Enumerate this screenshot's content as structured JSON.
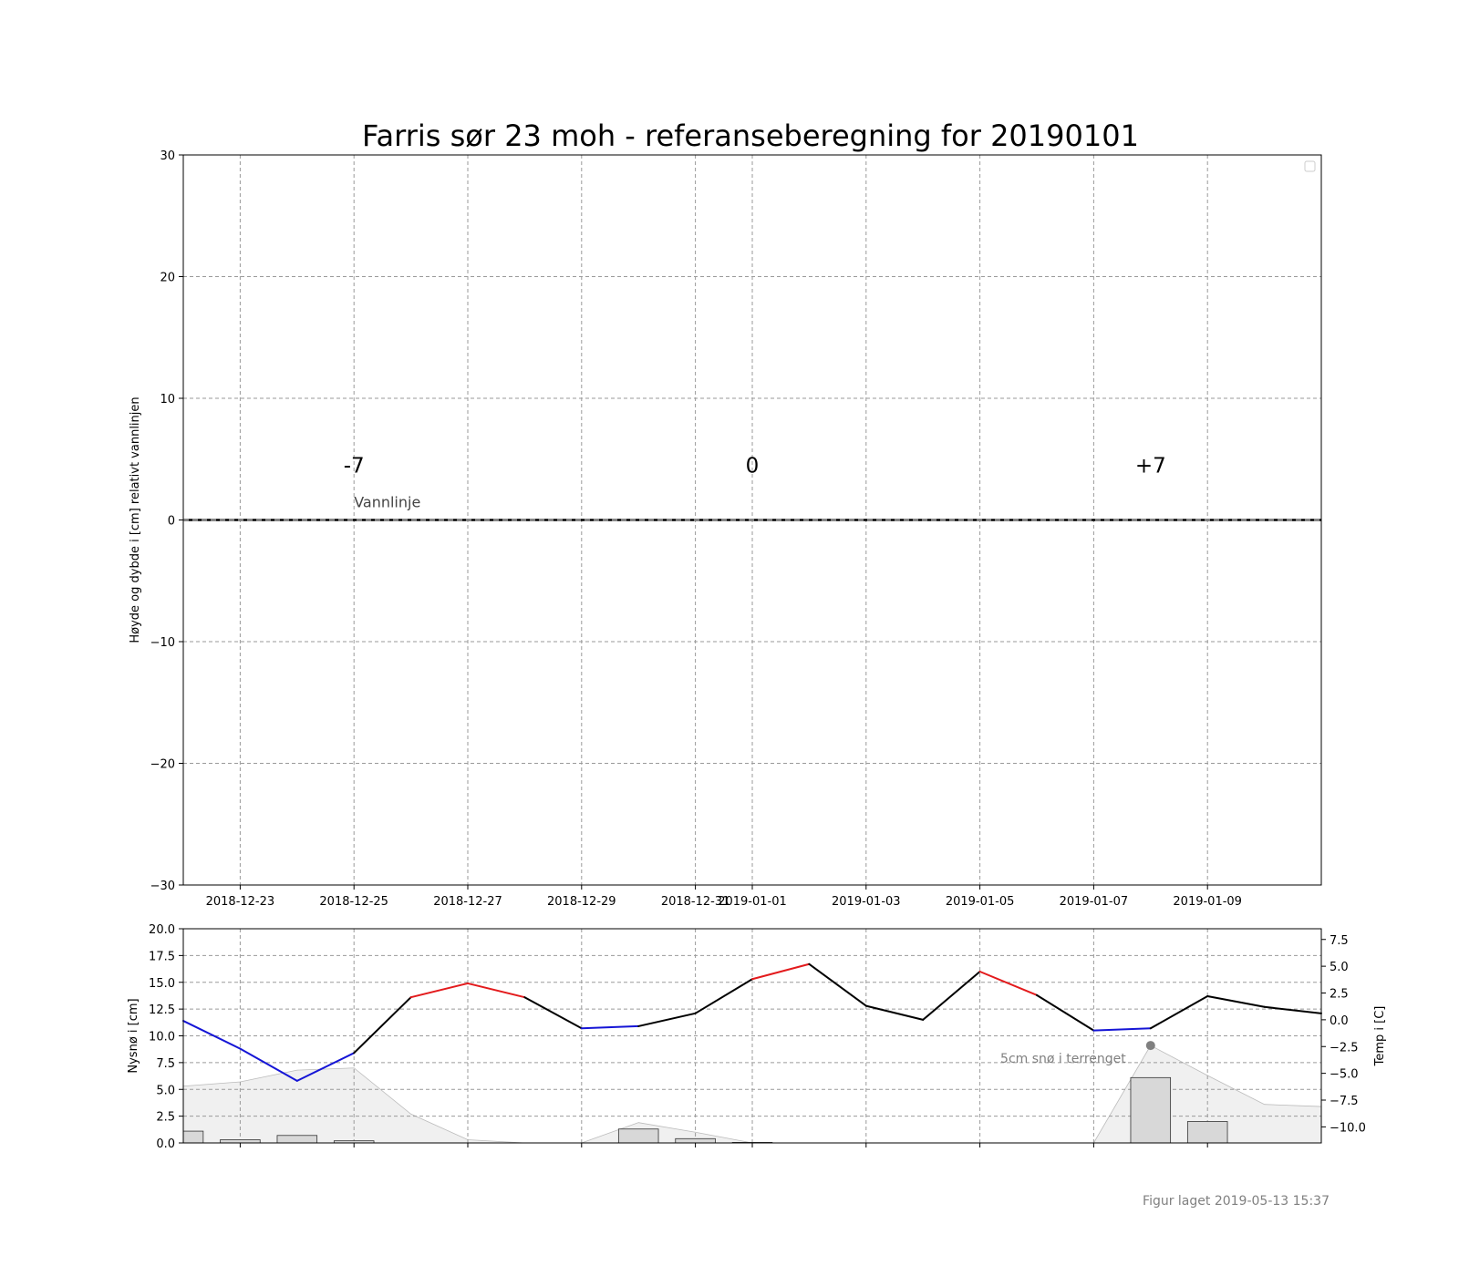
{
  "colors": {
    "warm": "#e31a1c",
    "cold": "#1515d6",
    "neutral": "#000000",
    "snow_fill": "#f0f0f0",
    "bar_fill": "#d8d8d8"
  },
  "chart_data": [
    {
      "type": "line",
      "title": "Farris sør 23 moh - referanseberegning for 20190101",
      "ylabel": "Høyde og dybde i [cm] relativt vannlinjen",
      "ylim": [
        -30,
        30
      ],
      "yticks": [
        -30,
        -20,
        -10,
        0,
        10,
        20,
        30
      ],
      "ytick_labels": [
        "−30",
        "−20",
        "−10",
        "0",
        "10",
        "20",
        "30"
      ],
      "xlim": [
        "2018-12-22",
        "2019-01-11"
      ],
      "xticks": [
        "2018-12-23",
        "2018-12-25",
        "2018-12-27",
        "2018-12-29",
        "2018-12-31",
        "2019-01-01",
        "2019-01-03",
        "2019-01-05",
        "2019-01-07",
        "2019-01-09"
      ],
      "xtick_labels": [
        "2018-12-23",
        "2018-12-25",
        "2018-12-27",
        "2018-12-29",
        "2018-12-31",
        "2019-01-01",
        "2019-01-03",
        "2019-01-05",
        "2019-01-07",
        "2019-01-09"
      ],
      "grid": true,
      "legend": "top-right (empty)",
      "reference_line": {
        "y": 0,
        "label": "Vannlinje"
      },
      "day_markers": [
        {
          "date": "2018-12-25",
          "y": 4.5,
          "text": "-7"
        },
        {
          "date": "2019-01-01",
          "y": 4.5,
          "text": "0"
        },
        {
          "date": "2019-01-08",
          "y": 4.5,
          "text": "+7"
        }
      ]
    },
    {
      "type": "bar",
      "ylabel": "Nysnø i [cm]",
      "ylim": [
        0,
        20
      ],
      "yticks": [
        0,
        2.5,
        5,
        7.5,
        10,
        12.5,
        15,
        17.5,
        20
      ],
      "ytick_labels": [
        "0.0",
        "2.5",
        "5.0",
        "7.5",
        "10.0",
        "12.5",
        "15.0",
        "17.5",
        "20.0"
      ],
      "xlim": [
        "2018-12-22",
        "2019-01-11"
      ],
      "xticks": [
        "2018-12-23",
        "2018-12-25",
        "2018-12-27",
        "2018-12-29",
        "2018-12-31",
        "2019-01-01",
        "2019-01-03",
        "2019-01-05",
        "2019-01-07",
        "2019-01-09"
      ],
      "grid": true,
      "new_snow": {
        "x": [
          "2018-12-22",
          "2018-12-23",
          "2018-12-24",
          "2018-12-25",
          "2018-12-30",
          "2018-12-31",
          "2019-01-01",
          "2019-01-08",
          "2019-01-09"
        ],
        "values": [
          1.1,
          0.3,
          0.7,
          0.2,
          1.3,
          0.4,
          0.05,
          6.1,
          2.0
        ]
      },
      "snow_depth": {
        "x": [
          "2018-12-22",
          "2018-12-23",
          "2018-12-24",
          "2018-12-25",
          "2018-12-26",
          "2018-12-27",
          "2018-12-28",
          "2018-12-29",
          "2018-12-30",
          "2018-12-31",
          "2019-01-01",
          "2019-01-02",
          "2019-01-03",
          "2019-01-04",
          "2019-01-05",
          "2019-01-06",
          "2019-01-07",
          "2019-01-08",
          "2019-01-09",
          "2019-01-10",
          "2019-01-11"
        ],
        "values": [
          5.3,
          5.7,
          6.8,
          7.0,
          2.7,
          0.3,
          0,
          0,
          1.9,
          1.0,
          0,
          0,
          0,
          0,
          0,
          0,
          0,
          9.1,
          6.3,
          3.6,
          3.4
        ]
      },
      "snow_marker": {
        "x": "2019-01-08",
        "y": 9.1,
        "label": "5cm snø i terrenget"
      },
      "temperature": {
        "ylabel": "Temp i [C]",
        "ylim": [
          -11.5,
          8.5
        ],
        "yticks": [
          -10,
          -7.5,
          -5,
          -2.5,
          0,
          2.5,
          5,
          7.5
        ],
        "ytick_labels": [
          "−10.0",
          "−7.5",
          "−5.0",
          "−2.5",
          "0.0",
          "2.5",
          "5.0",
          "7.5"
        ],
        "x": [
          "2018-12-22",
          "2018-12-23",
          "2018-12-24",
          "2018-12-25",
          "2018-12-26",
          "2018-12-27",
          "2018-12-28",
          "2018-12-29",
          "2018-12-30",
          "2018-12-31",
          "2019-01-01",
          "2019-01-02",
          "2019-01-03",
          "2019-01-04",
          "2019-01-05",
          "2019-01-06",
          "2019-01-07",
          "2019-01-08",
          "2019-01-09",
          "2019-01-10",
          "2019-01-11"
        ],
        "values": [
          -0.1,
          -2.7,
          -5.7,
          -3.1,
          2.1,
          3.4,
          2.1,
          -0.8,
          -0.6,
          0.6,
          3.8,
          5.2,
          1.3,
          0.0,
          4.5,
          2.3,
          -1.0,
          -0.8,
          2.2,
          1.2,
          0.6
        ]
      }
    }
  ],
  "footer": "Figur laget 2019-05-13 15:37"
}
